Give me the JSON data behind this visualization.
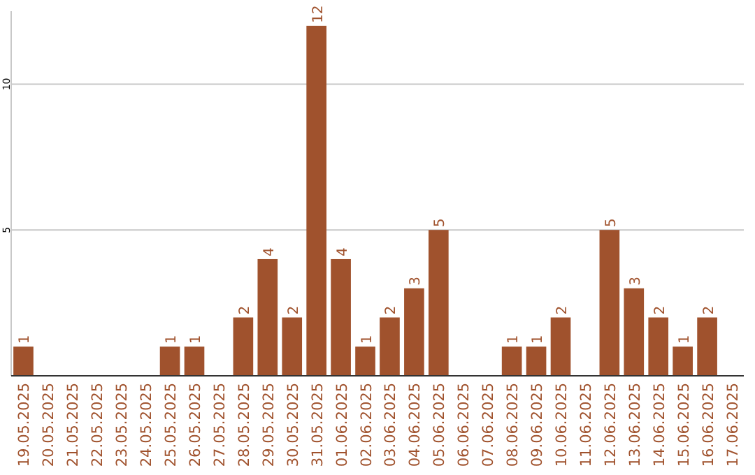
{
  "chart_data": {
    "type": "bar",
    "categories": [
      "19.05.2025",
      "20.05.2025",
      "21.05.2025",
      "22.05.2025",
      "23.05.2025",
      "24.05.2025",
      "25.05.2025",
      "26.05.2025",
      "27.05.2025",
      "28.05.2025",
      "29.05.2025",
      "30.05.2025",
      "31.05.2025",
      "01.06.2025",
      "02.06.2025",
      "03.06.2025",
      "04.06.2025",
      "05.06.2025",
      "06.06.2025",
      "07.06.2025",
      "08.06.2025",
      "09.06.2025",
      "10.06.2025",
      "11.06.2025",
      "12.06.2025",
      "13.06.2025",
      "14.06.2025",
      "15.06.2025",
      "16.06.2025",
      "17.06.2025"
    ],
    "values": [
      1,
      0,
      0,
      0,
      0,
      0,
      1,
      1,
      0,
      2,
      4,
      2,
      12,
      4,
      1,
      2,
      3,
      5,
      0,
      0,
      1,
      1,
      2,
      0,
      5,
      3,
      2,
      1,
      2,
      0
    ],
    "value_labels": [
      "1",
      null,
      null,
      null,
      null,
      null,
      "1",
      "1",
      null,
      "2",
      "4",
      "2",
      "12",
      "4",
      "1",
      "2",
      "3",
      "5",
      null,
      null,
      "1",
      "1",
      "2",
      null,
      "5",
      "3",
      "2",
      "1",
      "2",
      null
    ],
    "color": "#a0522d",
    "ylim": [
      0,
      12.5
    ],
    "yticks": [
      5,
      10
    ],
    "grid": "y"
  }
}
